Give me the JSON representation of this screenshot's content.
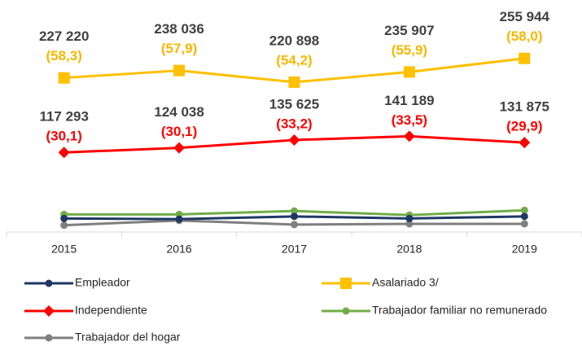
{
  "chart_data": {
    "type": "line",
    "categories": [
      "2015",
      "2016",
      "2017",
      "2018",
      "2019"
    ],
    "ylim": [
      0,
      270000
    ],
    "series": [
      {
        "name": "Empleador",
        "color": "#1f3864",
        "marker": "circle",
        "values": [
          20000,
          19000,
          23000,
          20000,
          23000
        ]
      },
      {
        "name": "Asalariado 3/",
        "color": "#ffc000",
        "marker": "square",
        "label_color": "#f5b800",
        "values": [
          227220,
          238036,
          220898,
          235907,
          255944
        ],
        "value_labels": [
          "227 220",
          "238 036",
          "220 898",
          "235 907",
          "255 944"
        ],
        "shares": [
          58.3,
          57.9,
          54.2,
          55.9,
          58.0
        ],
        "share_labels": [
          "(58,3)",
          "(57,9)",
          "(54,2)",
          "(55,9)",
          "(58,0)"
        ]
      },
      {
        "name": "Independiente",
        "color": "#ff0000",
        "marker": "diamond",
        "label_color": "#ff0000",
        "values": [
          117293,
          124038,
          135625,
          141189,
          131875
        ],
        "value_labels": [
          "117 293",
          "124 038",
          "135 625",
          "141 189",
          "131 875"
        ],
        "shares": [
          30.1,
          30.1,
          33.2,
          33.5,
          29.9
        ],
        "share_labels": [
          "(30,1)",
          "(30,1)",
          "(33,2)",
          "(33,5)",
          "(29,9)"
        ]
      },
      {
        "name": "Trabajador familiar no remunerado",
        "color": "#70ad47",
        "marker": "circle",
        "values": [
          26000,
          26000,
          31000,
          25000,
          32000
        ]
      },
      {
        "name": "Trabajador del hogar",
        "color": "#7f7f7f",
        "marker": "circle",
        "values": [
          10000,
          17000,
          11000,
          12000,
          12000
        ]
      }
    ]
  }
}
